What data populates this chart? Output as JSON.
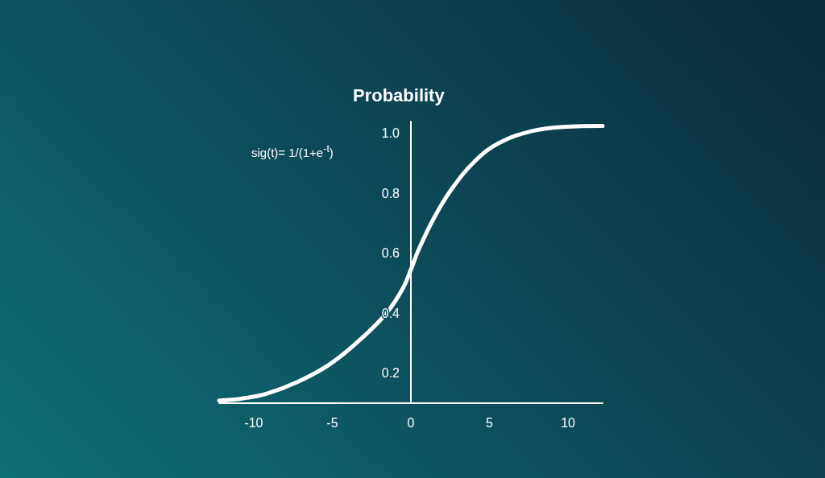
{
  "chart_data": {
    "type": "line",
    "title": "Probability",
    "annotations": [
      "sig(t)= 1/(1+e$^{-t}$)"
    ],
    "x": [
      -12.2,
      -10.8,
      -9.2,
      -7.2,
      -5.1,
      -3.1,
      -1.5,
      -0.5,
      0,
      0.5,
      1.5,
      2.6,
      4.1,
      5.6,
      7.7,
      9.7,
      12.2
    ],
    "series": [
      {
        "color": "#ffffff",
        "values": [
          0.109,
          0.115,
          0.131,
          0.171,
          0.232,
          0.318,
          0.404,
          0.484,
          0.546,
          0.613,
          0.721,
          0.815,
          0.909,
          0.968,
          1.008,
          1.022,
          1.025
        ]
      }
    ],
    "xlim": [
      -12.2,
      12.2
    ],
    "xticks": [
      -10,
      -5,
      0,
      5,
      10
    ],
    "ylim": [
      0.1,
      1.04
    ],
    "yticks": [
      0.2,
      0.4,
      0.6,
      0.8,
      {
        "value": 1,
        "label": "1.0"
      }
    ],
    "marker": "none",
    "line_style": "solid"
  }
}
